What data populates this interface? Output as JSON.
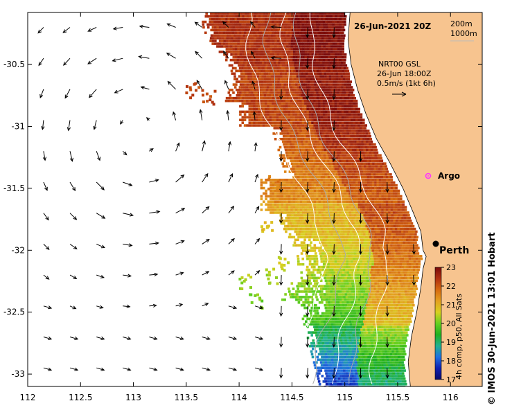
{
  "header": {
    "date_label": "26-Jun-2021 20Z",
    "contour_legend": [
      "200m",
      "1000m"
    ]
  },
  "current_legend": {
    "line1": "NRT00 GSL",
    "line2": "26-Jun 18:00Z",
    "line3": "0.5m/s (1kt 6h)"
  },
  "places": [
    {
      "name": "Argo",
      "lon": 115.75,
      "lat": -31.45,
      "marker": "circle",
      "color": "#ff33ff"
    },
    {
      "name": "Perth",
      "lon": 115.86,
      "lat": -31.95,
      "marker": "dot",
      "color": "#000000"
    }
  ],
  "colorbar": {
    "title": "4h comp, p50, All Sats",
    "ticks": [
      "23",
      "22",
      "21",
      "20",
      "19",
      "18",
      "17"
    ],
    "min": 17,
    "max": 23,
    "colors": [
      "#7a0a0a",
      "#b03010",
      "#d66a10",
      "#e4a020",
      "#d8d020",
      "#66d020",
      "#20b020",
      "#20b090",
      "#2070e0",
      "#1020b0",
      "#0a0a6a"
    ]
  },
  "credit": "© IMOS 30-Jun-2021 13:01 Hobart",
  "map_axes": {
    "lon_range": [
      112,
      116.3
    ],
    "lat_range": [
      -33.1,
      -30.08
    ],
    "lon_ticks": [
      "112",
      "112.5",
      "113",
      "113.5",
      "114",
      "114.5",
      "115",
      "115.5",
      "116"
    ],
    "lat_ticks": [
      "-30.5",
      "-31",
      "-31.5",
      "-32",
      "-32.5",
      "-33"
    ],
    "coast_color": "#f7c48f",
    "ocean_color": "#ffffff"
  },
  "eddy": {
    "center_lon": 113.05,
    "center_lat": -31.05,
    "sense": "anticlockwise"
  }
}
